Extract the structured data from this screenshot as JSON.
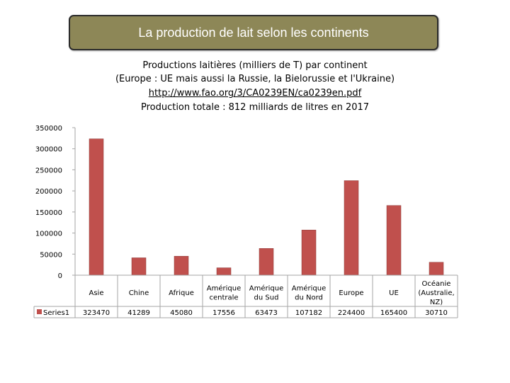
{
  "header": {
    "title": "La production de lait selon les continents"
  },
  "chart_data": {
    "type": "bar",
    "title_lines": [
      "Productions laitières (milliers de T) par continent",
      "(Europe : UE mais aussi la Russie, la Bielorussie et l'Ukraine)",
      "http://www.fao.org/3/CA0239EN/ca0239en.pdf",
      "Production totale : 812 milliards de litres en 2017"
    ],
    "categories": [
      "Asie",
      "Chine",
      "Afrique",
      "Amérique centrale",
      "Amérique du Sud",
      "Amérique du Nord",
      "Europe",
      "UE",
      "Océanie (Australie, NZ)"
    ],
    "category_lines": [
      [
        "Asie"
      ],
      [
        "Chine"
      ],
      [
        "Afrique"
      ],
      [
        "Amérique",
        "centrale"
      ],
      [
        "Amérique",
        "du Sud"
      ],
      [
        "Amérique",
        "du Nord"
      ],
      [
        "Europe"
      ],
      [
        "UE"
      ],
      [
        "Océanie",
        "(Australie,",
        "NZ)"
      ]
    ],
    "series": [
      {
        "name": "Series1",
        "values": [
          323470,
          41289,
          45080,
          17556,
          63473,
          107182,
          224400,
          165400,
          30710
        ],
        "value_labels": [
          "323470",
          "41289",
          "45080",
          "17556",
          "63473",
          "107182",
          "224400",
          "165400",
          "30710"
        ],
        "color": "#c0504d"
      }
    ],
    "yticks": [
      "0",
      "50000",
      "100000",
      "150000",
      "200000",
      "250000",
      "300000",
      "350000"
    ],
    "ylim": [
      0,
      350000
    ],
    "grid": false,
    "legend": "data-table"
  }
}
